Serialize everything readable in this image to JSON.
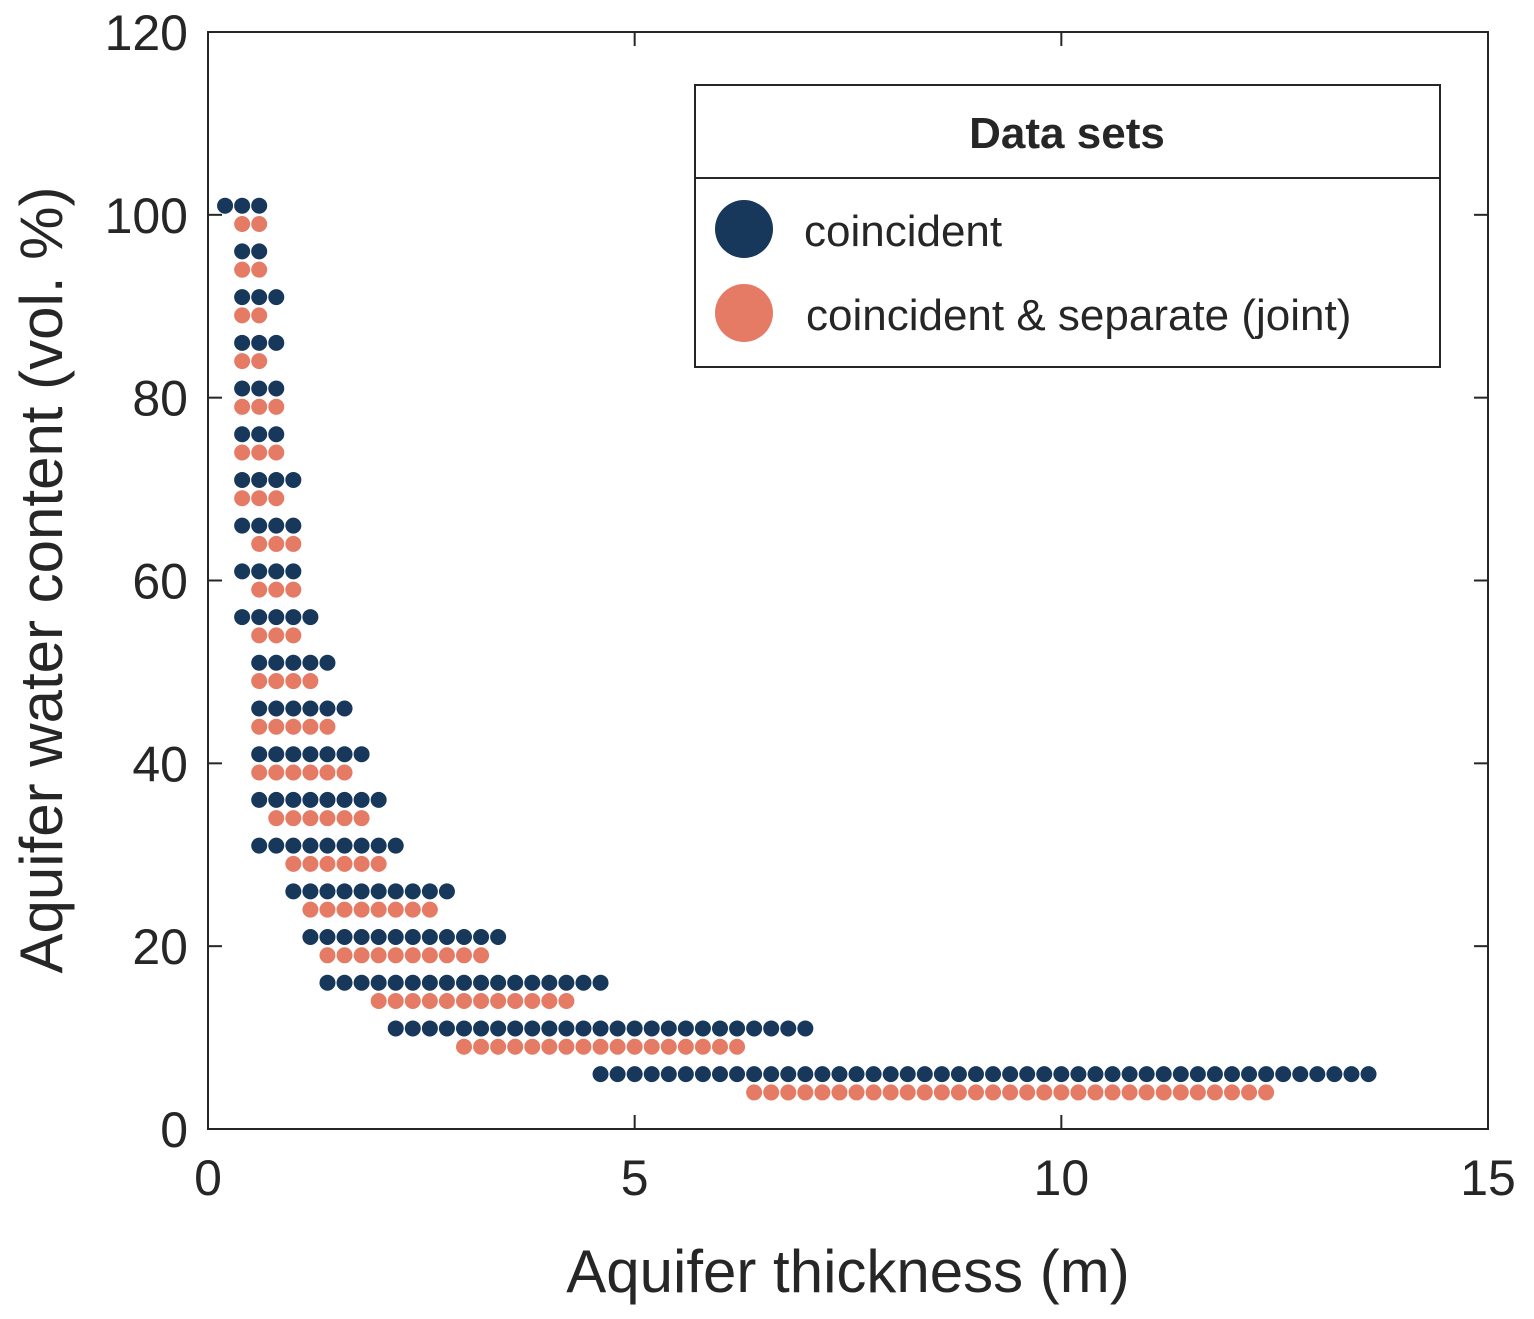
{
  "chart_data": {
    "type": "scatter",
    "title": "",
    "xlabel": "Aquifer thickness (m)",
    "ylabel": "Aquifer water content (vol. %)",
    "xlim": [
      0,
      15
    ],
    "ylim": [
      0,
      120
    ],
    "xticks": [
      0,
      5,
      10,
      15
    ],
    "xtick_labels": [
      "0",
      "5",
      "10",
      "15"
    ],
    "yticks": [
      0,
      20,
      40,
      60,
      80,
      100,
      120
    ],
    "ytick_labels": [
      "0",
      "20",
      "40",
      "60",
      "80",
      "100",
      "120"
    ],
    "grid": false,
    "legend": {
      "title": "Data sets",
      "position": "top-right"
    },
    "series": [
      {
        "name": "coincident",
        "color": "#17375b",
        "rows": [
          {
            "y": 101,
            "x_start": 0.2,
            "x_end": 0.6
          },
          {
            "y": 96,
            "x_start": 0.4,
            "x_end": 0.6
          },
          {
            "y": 91,
            "x_start": 0.4,
            "x_end": 0.8
          },
          {
            "y": 86,
            "x_start": 0.4,
            "x_end": 0.8
          },
          {
            "y": 81,
            "x_start": 0.4,
            "x_end": 0.8
          },
          {
            "y": 76,
            "x_start": 0.4,
            "x_end": 0.8
          },
          {
            "y": 71,
            "x_start": 0.4,
            "x_end": 1.0
          },
          {
            "y": 66,
            "x_start": 0.4,
            "x_end": 1.0
          },
          {
            "y": 61,
            "x_start": 0.4,
            "x_end": 1.0
          },
          {
            "y": 56,
            "x_start": 0.4,
            "x_end": 1.2
          },
          {
            "y": 51,
            "x_start": 0.6,
            "x_end": 1.4
          },
          {
            "y": 46,
            "x_start": 0.6,
            "x_end": 1.6
          },
          {
            "y": 41,
            "x_start": 0.6,
            "x_end": 1.8
          },
          {
            "y": 36,
            "x_start": 0.6,
            "x_end": 2.0
          },
          {
            "y": 31,
            "x_start": 0.6,
            "x_end": 2.2
          },
          {
            "y": 26,
            "x_start": 1.0,
            "x_end": 2.8
          },
          {
            "y": 21,
            "x_start": 1.2,
            "x_end": 3.4
          },
          {
            "y": 16,
            "x_start": 1.4,
            "x_end": 4.6
          },
          {
            "y": 11,
            "x_start": 2.2,
            "x_end": 7.0
          },
          {
            "y": 6,
            "x_start": 4.6,
            "x_end": 13.6
          }
        ],
        "step": 0.2
      },
      {
        "name": "coincident & separate (joint)",
        "color": "#e57b64",
        "rows": [
          {
            "y": 99,
            "x_start": 0.4,
            "x_end": 0.6
          },
          {
            "y": 94,
            "x_start": 0.4,
            "x_end": 0.6
          },
          {
            "y": 89,
            "x_start": 0.4,
            "x_end": 0.6
          },
          {
            "y": 84,
            "x_start": 0.4,
            "x_end": 0.6
          },
          {
            "y": 79,
            "x_start": 0.4,
            "x_end": 0.8
          },
          {
            "y": 74,
            "x_start": 0.4,
            "x_end": 0.8
          },
          {
            "y": 69,
            "x_start": 0.4,
            "x_end": 0.8
          },
          {
            "y": 64,
            "x_start": 0.6,
            "x_end": 1.0
          },
          {
            "y": 59,
            "x_start": 0.6,
            "x_end": 1.0
          },
          {
            "y": 54,
            "x_start": 0.6,
            "x_end": 1.0
          },
          {
            "y": 49,
            "x_start": 0.6,
            "x_end": 1.2
          },
          {
            "y": 44,
            "x_start": 0.6,
            "x_end": 1.4
          },
          {
            "y": 39,
            "x_start": 0.6,
            "x_end": 1.6
          },
          {
            "y": 34,
            "x_start": 0.8,
            "x_end": 1.8
          },
          {
            "y": 29,
            "x_start": 1.0,
            "x_end": 2.0
          },
          {
            "y": 24,
            "x_start": 1.2,
            "x_end": 2.6
          },
          {
            "y": 19,
            "x_start": 1.4,
            "x_end": 3.2
          },
          {
            "y": 14,
            "x_start": 2.0,
            "x_end": 4.2
          },
          {
            "y": 9,
            "x_start": 3.0,
            "x_end": 6.2
          },
          {
            "y": 4,
            "x_start": 6.4,
            "x_end": 12.4
          }
        ],
        "step": 0.2
      }
    ]
  }
}
